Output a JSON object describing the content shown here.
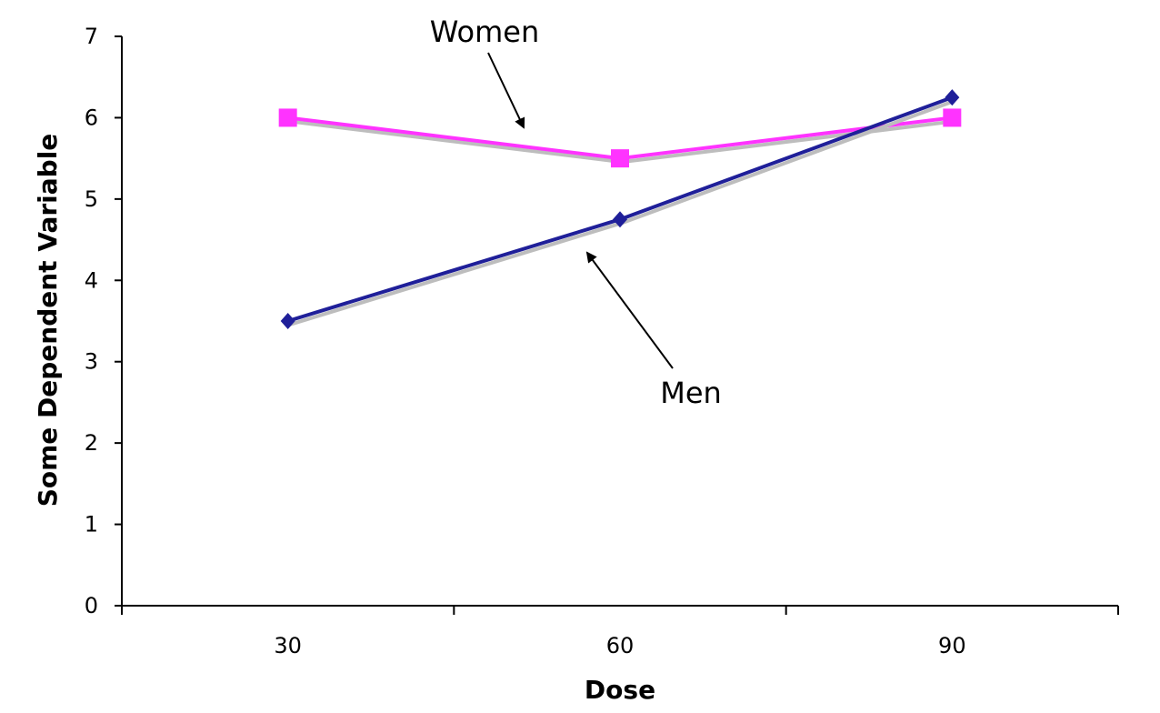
{
  "chart_data": {
    "type": "line",
    "title": "",
    "xlabel": "Dose",
    "ylabel": "Some Dependent Variable",
    "categories": [
      "30",
      "60",
      "90"
    ],
    "ylim": [
      0,
      7
    ],
    "yticks": [
      "0",
      "1",
      "2",
      "3",
      "4",
      "5",
      "6",
      "7"
    ],
    "grid": false,
    "legend": "none",
    "series": [
      {
        "name": "Women",
        "values": [
          6.0,
          5.5,
          6.0
        ],
        "color": "#ff33ff",
        "marker": "square"
      },
      {
        "name": "Men",
        "values": [
          3.5,
          4.75,
          6.25
        ],
        "color": "#1f1f99",
        "marker": "diamond"
      }
    ],
    "annotations": [
      {
        "text": "Women",
        "points_to": "Women"
      },
      {
        "text": "Men",
        "points_to": "Men"
      }
    ]
  }
}
